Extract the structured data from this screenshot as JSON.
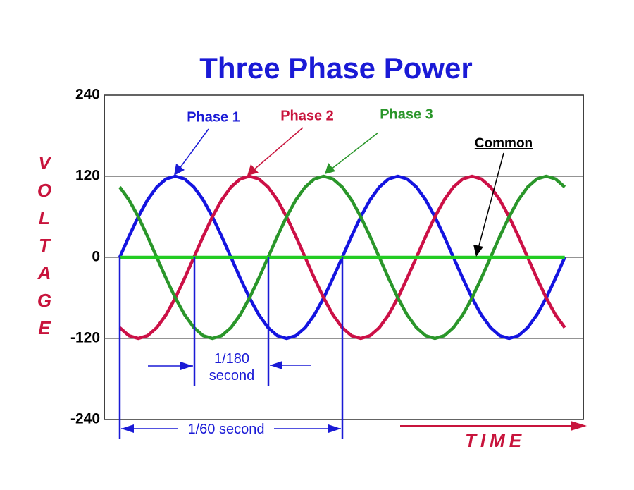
{
  "chart_data": {
    "type": "line",
    "title": "Three Phase Power",
    "ylabel": "VOLTAGE",
    "xlabel": "TIME",
    "annotations": [
      "1/180 second",
      "1/60 second"
    ],
    "x": [
      0,
      15,
      30,
      45,
      60,
      75,
      90,
      105,
      120,
      135,
      150,
      165,
      180,
      195,
      210,
      225,
      240,
      255,
      270,
      285,
      300,
      315,
      330,
      345,
      360,
      375,
      390,
      405,
      420,
      435,
      450,
      465,
      480,
      495,
      510,
      525,
      540,
      555,
      570,
      585,
      600,
      615,
      630,
      645,
      660,
      675,
      690,
      705,
      720
    ],
    "xlim": [
      -25,
      750
    ],
    "ylim": [
      -240,
      240
    ],
    "yticks": [
      -240,
      -120,
      0,
      120,
      240
    ],
    "grid": true,
    "series": [
      {
        "name": "Phase 1",
        "color": "#1414e0",
        "values": [
          0,
          31,
          60,
          85,
          104,
          116,
          120,
          116,
          104,
          85,
          60,
          31,
          0,
          -31,
          -60,
          -85,
          -104,
          -116,
          -120,
          -116,
          -104,
          -85,
          -60,
          -31,
          0,
          31,
          60,
          85,
          104,
          116,
          120,
          116,
          104,
          85,
          60,
          31,
          0,
          -31,
          -60,
          -85,
          -104,
          -116,
          -120,
          -116,
          -104,
          -85,
          -60,
          -31,
          0
        ]
      },
      {
        "name": "Phase 2",
        "color": "#cc1046",
        "values": [
          -104,
          -116,
          -120,
          -116,
          -104,
          -85,
          -60,
          -31,
          0,
          31,
          60,
          85,
          104,
          116,
          120,
          116,
          104,
          85,
          60,
          31,
          0,
          -31,
          -60,
          -85,
          -104,
          -116,
          -120,
          -116,
          -104,
          -85,
          -60,
          -31,
          0,
          31,
          60,
          85,
          104,
          116,
          120,
          116,
          104,
          85,
          60,
          31,
          0,
          -31,
          -60,
          -85,
          -104
        ]
      },
      {
        "name": "Phase 3",
        "color": "#2a962a",
        "values": [
          104,
          85,
          60,
          31,
          0,
          -31,
          -60,
          -85,
          -104,
          -116,
          -120,
          -116,
          -104,
          -85,
          -60,
          -31,
          0,
          31,
          60,
          85,
          104,
          116,
          120,
          116,
          104,
          85,
          60,
          31,
          0,
          -31,
          -60,
          -85,
          -104,
          -116,
          -120,
          -116,
          -104,
          -85,
          -60,
          -31,
          0,
          31,
          60,
          85,
          104,
          116,
          120,
          116,
          104
        ]
      },
      {
        "name": "Common",
        "color": "#22cc22",
        "values": [
          0,
          0,
          0,
          0,
          0,
          0,
          0,
          0,
          0,
          0,
          0,
          0,
          0,
          0,
          0,
          0,
          0,
          0,
          0,
          0,
          0,
          0,
          0,
          0,
          0,
          0,
          0,
          0,
          0,
          0,
          0,
          0,
          0,
          0,
          0,
          0,
          0,
          0,
          0,
          0,
          0,
          0,
          0,
          0,
          0,
          0,
          0,
          0,
          0
        ]
      }
    ]
  }
}
